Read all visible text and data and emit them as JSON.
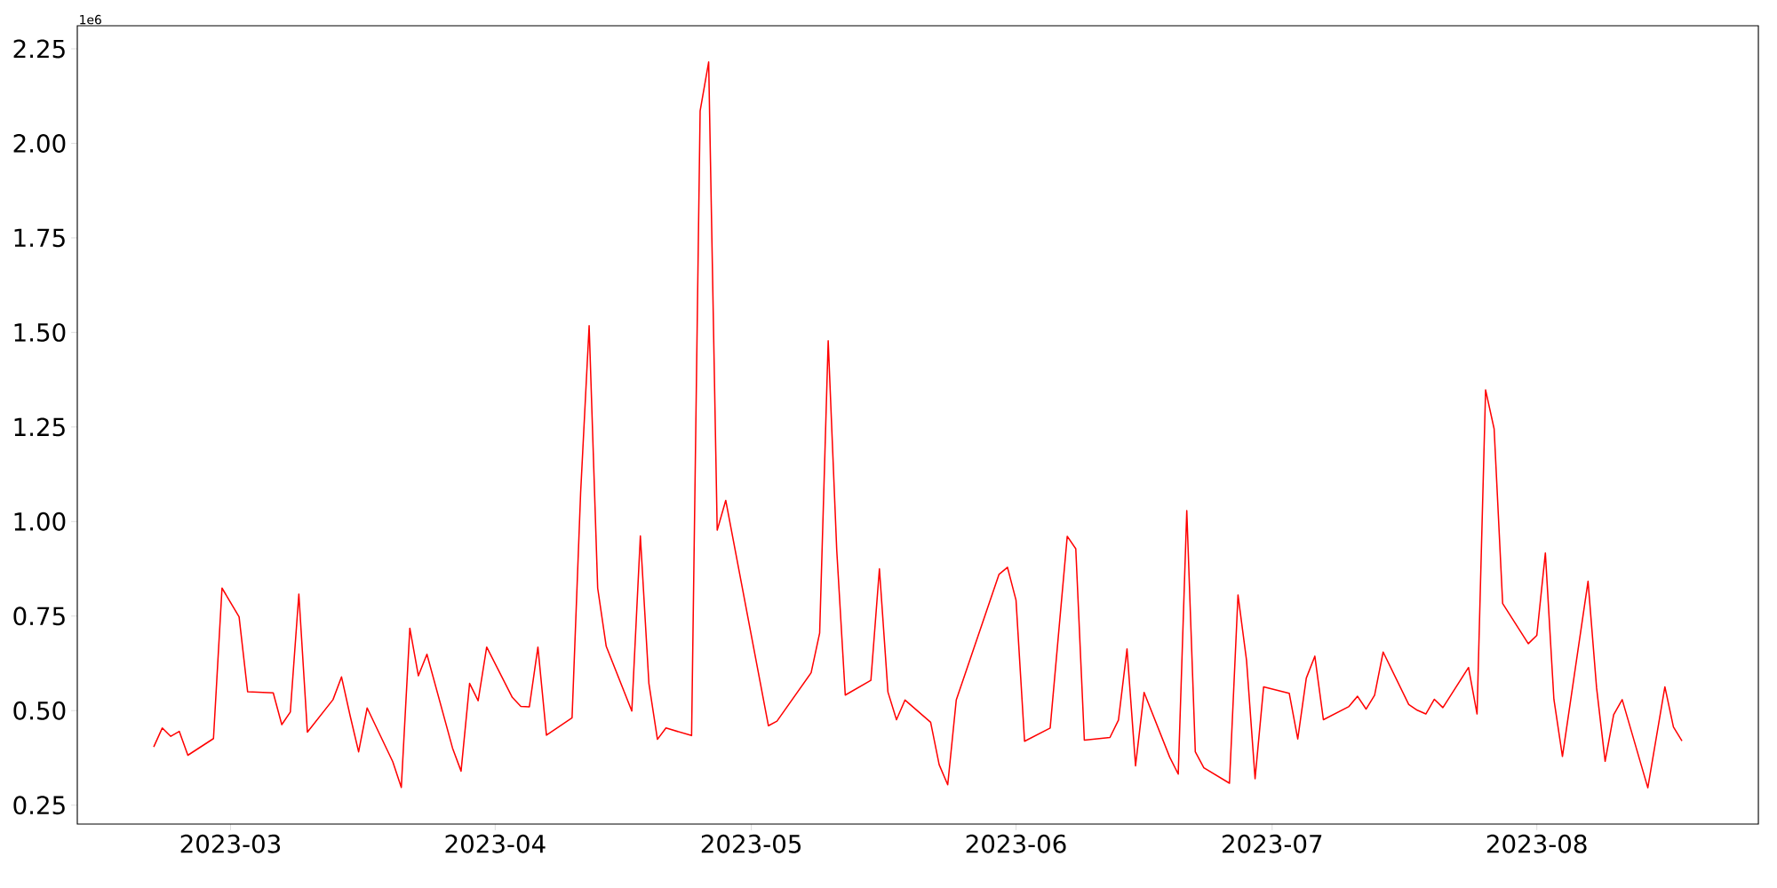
{
  "chart_data": {
    "type": "line",
    "color": "#ff0000",
    "annotations": [
      "1e6"
    ],
    "x": [
      "2023-02-20",
      "2023-02-21",
      "2023-02-22",
      "2023-02-23",
      "2023-02-24",
      "2023-02-27",
      "2023-02-28",
      "2023-03-02",
      "2023-03-03",
      "2023-03-06",
      "2023-03-07",
      "2023-03-08",
      "2023-03-09",
      "2023-03-10",
      "2023-03-13",
      "2023-03-14",
      "2023-03-15",
      "2023-03-16",
      "2023-03-17",
      "2023-03-20",
      "2023-03-21",
      "2023-03-22",
      "2023-03-23",
      "2023-03-24",
      "2023-03-27",
      "2023-03-28",
      "2023-03-29",
      "2023-03-30",
      "2023-03-31",
      "2023-04-03",
      "2023-04-04",
      "2023-04-05",
      "2023-04-06",
      "2023-04-07",
      "2023-04-10",
      "2023-04-11",
      "2023-04-12",
      "2023-04-13",
      "2023-04-14",
      "2023-04-17",
      "2023-04-18",
      "2023-04-19",
      "2023-04-20",
      "2023-04-21",
      "2023-04-24",
      "2023-04-25",
      "2023-04-26",
      "2023-04-27",
      "2023-04-28",
      "2023-05-03",
      "2023-05-04",
      "2023-05-08",
      "2023-05-09",
      "2023-05-10",
      "2023-05-11",
      "2023-05-12",
      "2023-05-15",
      "2023-05-16",
      "2023-05-17",
      "2023-05-18",
      "2023-05-19",
      "2023-05-22",
      "2023-05-23",
      "2023-05-24",
      "2023-05-25",
      "2023-05-30",
      "2023-05-31",
      "2023-06-01",
      "2023-06-02",
      "2023-06-05",
      "2023-06-07",
      "2023-06-08",
      "2023-06-09",
      "2023-06-12",
      "2023-06-13",
      "2023-06-14",
      "2023-06-15",
      "2023-06-16",
      "2023-06-19",
      "2023-06-20",
      "2023-06-21",
      "2023-06-22",
      "2023-06-23",
      "2023-06-26",
      "2023-06-27",
      "2023-06-28",
      "2023-06-29",
      "2023-06-30",
      "2023-07-03",
      "2023-07-04",
      "2023-07-05",
      "2023-07-06",
      "2023-07-07",
      "2023-07-10",
      "2023-07-11",
      "2023-07-12",
      "2023-07-13",
      "2023-07-14",
      "2023-07-17",
      "2023-07-18",
      "2023-07-19",
      "2023-07-20",
      "2023-07-21",
      "2023-07-24",
      "2023-07-25",
      "2023-07-26",
      "2023-07-27",
      "2023-07-28",
      "2023-07-31",
      "2023-08-01",
      "2023-08-02",
      "2023-08-03",
      "2023-08-04",
      "2023-08-07",
      "2023-08-08",
      "2023-08-09",
      "2023-08-10",
      "2023-08-11",
      "2023-08-14",
      "2023-08-16",
      "2023-08-17",
      "2023-08-18"
    ],
    "values": [
      0.404,
      0.454,
      0.432,
      0.445,
      0.382,
      0.426,
      0.824,
      0.748,
      0.55,
      0.547,
      0.463,
      0.496,
      0.808,
      0.443,
      0.529,
      0.589,
      0.487,
      0.391,
      0.507,
      0.365,
      0.297,
      0.718,
      0.592,
      0.649,
      0.401,
      0.34,
      0.572,
      0.526,
      0.668,
      0.535,
      0.511,
      0.51,
      0.668,
      0.435,
      0.481,
      1.074,
      1.518,
      0.824,
      0.67,
      0.499,
      0.962,
      0.572,
      0.424,
      0.454,
      0.434,
      2.086,
      2.215,
      0.977,
      1.056,
      0.46,
      0.472,
      0.6,
      0.705,
      1.478,
      0.925,
      0.541,
      0.58,
      0.875,
      0.549,
      0.476,
      0.528,
      0.469,
      0.357,
      0.304,
      0.528,
      0.86,
      0.879,
      0.792,
      0.419,
      0.454,
      0.961,
      0.928,
      0.422,
      0.429,
      0.475,
      0.663,
      0.354,
      0.548,
      0.377,
      0.332,
      1.029,
      0.391,
      0.349,
      0.308,
      0.806,
      0.633,
      0.32,
      0.563,
      0.546,
      0.425,
      0.586,
      0.644,
      0.476,
      0.511,
      0.538,
      0.504,
      0.541,
      0.655,
      0.516,
      0.501,
      0.491,
      0.53,
      0.508,
      0.614,
      0.491,
      1.348,
      1.245,
      0.783,
      0.677,
      0.699,
      0.917,
      0.53,
      0.379,
      0.842,
      0.56,
      0.366,
      0.489,
      0.529,
      0.296,
      0.563,
      0.457,
      0.42
    ],
    "xlim": [
      "2023-02-11T01:12",
      "2023-08-26T22:48"
    ],
    "xticks": [
      {
        "value": "2023-03-01",
        "label": "2023-03"
      },
      {
        "value": "2023-04-01",
        "label": "2023-04"
      },
      {
        "value": "2023-05-01",
        "label": "2023-05"
      },
      {
        "value": "2023-06-01",
        "label": "2023-06"
      },
      {
        "value": "2023-07-01",
        "label": "2023-07"
      },
      {
        "value": "2023-08-01",
        "label": "2023-08"
      }
    ],
    "ylim": [
      0.2,
      2.311
    ],
    "yticks": [
      {
        "value": 0.25,
        "label": "0.25"
      },
      {
        "value": 0.5,
        "label": "0.50"
      },
      {
        "value": 0.75,
        "label": "0.75"
      },
      {
        "value": 1,
        "label": "1.00"
      },
      {
        "value": 1.25,
        "label": "1.25"
      },
      {
        "value": 1.5,
        "label": "1.50"
      },
      {
        "value": 1.75,
        "label": "1.75"
      },
      {
        "value": 2,
        "label": "2.00"
      },
      {
        "value": 2.25,
        "label": "2.25"
      }
    ]
  }
}
